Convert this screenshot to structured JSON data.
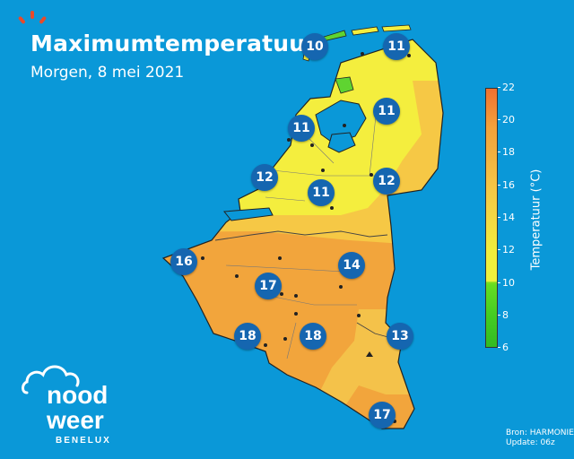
{
  "header": {
    "title": "Maximumtemperatuur",
    "subtitle": "Morgen, 8 mei 2021"
  },
  "legend": {
    "title": "Temperatuur (°C)",
    "ticks": [
      "22",
      "20",
      "18",
      "16",
      "14",
      "12",
      "10",
      "8",
      "6"
    ],
    "colors": {
      "cool_green": "#33bb22",
      "green": "#7ee020",
      "yellow": "#f2ee3c",
      "light_orange": "#f6c645",
      "orange": "#f4a23a",
      "deep_orange": "#f07030"
    }
  },
  "map": {
    "temperatures": [
      "10",
      "11",
      "11",
      "11",
      "12",
      "12",
      "11",
      "16",
      "14",
      "17",
      "18",
      "18",
      "13",
      "17"
    ]
  },
  "footer": {
    "source": "Bron: HARMONIE",
    "update": "Update: 06z"
  },
  "logo": {
    "line1": "nood",
    "line2": "weer",
    "line3": "BENELUX"
  }
}
